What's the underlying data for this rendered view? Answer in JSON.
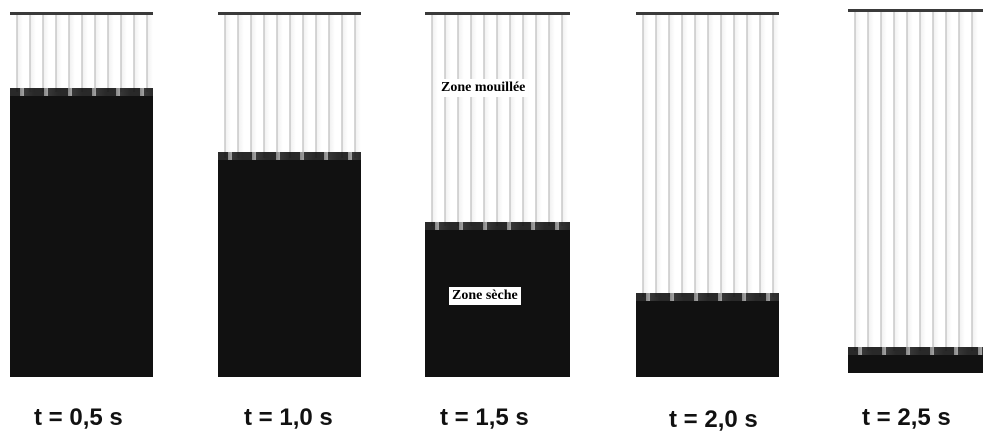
{
  "frames": [
    {
      "time_label": "t = 0,5 s"
    },
    {
      "time_label": "t = 1,0 s"
    },
    {
      "time_label": "t = 1,5 s"
    },
    {
      "time_label": "t = 2,0 s"
    },
    {
      "time_label": "t = 2,5 s"
    }
  ],
  "annotations": {
    "wet_zone": "Zone mouillée",
    "dry_zone": "Zone sèche"
  },
  "colors": {
    "wet": "#ffffff",
    "dry": "#111111"
  }
}
